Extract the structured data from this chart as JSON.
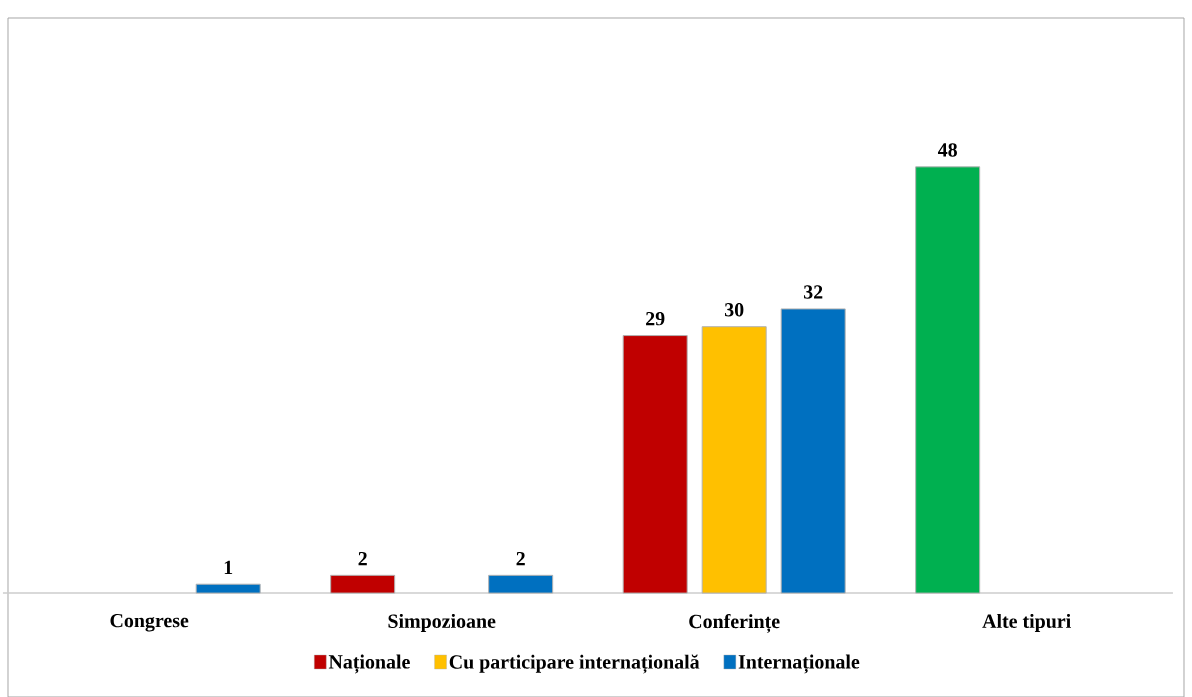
{
  "chart_data": {
    "type": "bar",
    "categories": [
      "Congrese",
      "Simpozioane",
      "Conferințe",
      "Alte tipuri"
    ],
    "series": [
      {
        "name": "Naționale",
        "color": "#c00000",
        "colors": [
          "#c00000",
          "#c00000",
          "#c00000",
          "#00b050"
        ],
        "values": [
          null,
          2,
          29,
          48
        ]
      },
      {
        "name": "Cu participare internațională",
        "color": "#ffc000",
        "values": [
          null,
          null,
          30,
          null
        ]
      },
      {
        "name": "Internaționale",
        "color": "#0070c0",
        "values": [
          1,
          2,
          32,
          null
        ]
      }
    ],
    "data_labels": true,
    "legend": "bottom"
  }
}
